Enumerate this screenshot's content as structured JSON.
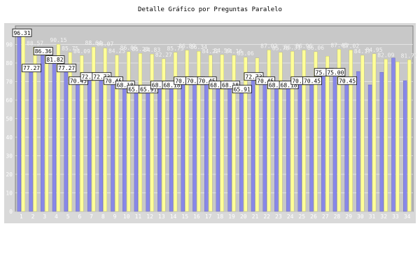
{
  "chart_data": {
    "type": "bar",
    "title": "Detalle Gráfico por Preguntas Paralelo",
    "xlabel": "",
    "ylabel": "",
    "ylim": [
      0,
      100
    ],
    "grid": true,
    "legend": "none",
    "categories": [
      "1",
      "2",
      "3",
      "4",
      "5",
      "6",
      "7",
      "8",
      "9",
      "10",
      "11",
      "12",
      "13",
      "14",
      "15",
      "16",
      "17",
      "18",
      "19",
      "20",
      "21",
      "22",
      "23",
      "24",
      "25",
      "26",
      "27",
      "28",
      "29",
      "30",
      "31",
      "32",
      "33",
      "34"
    ],
    "y_ticks": [
      "0",
      "10",
      "20",
      "30",
      "40",
      "50",
      "60",
      "70",
      "80",
      "90"
    ],
    "series": [
      {
        "color": "#8888e8",
        "values": [
          96.31,
          77.27,
          86.36,
          81.82,
          77.27,
          70.45,
          72.73,
          72.73,
          70.45,
          68.18,
          65.91,
          65.91,
          68.18,
          68.18,
          70.45,
          70.45,
          70.45,
          68.18,
          68.18,
          65.91,
          72.73,
          70.45,
          68.18,
          68.18,
          70.45,
          70.45,
          75.0,
          75.0,
          70.45,
          75.45,
          68.18,
          75.0,
          82.73,
          70.45
        ],
        "labels": [
          "96.31",
          "77.27",
          "86.36",
          "81.82",
          "77.27",
          "70.45",
          "72.73",
          "72.73",
          "70.45",
          "68.18",
          "65.91",
          "65.91",
          "68.18",
          "68.18",
          "70.45",
          "70.45",
          "70.45",
          "68.18",
          "68.18",
          "65.91",
          "72.73",
          "70.45",
          "68.18",
          "68.18",
          "70.45",
          "70.45",
          "75.00",
          "75.00",
          "70.45",
          "",
          "",
          "",
          "",
          ""
        ]
      },
      {
        "color": "#ffff99",
        "values": [
          96.31,
          88.57,
          86.36,
          90.15,
          85.75,
          84.09,
          88.64,
          88.07,
          84.25,
          86.06,
          85.23,
          84.83,
          82.27,
          85.75,
          86.89,
          86.34,
          84.22,
          84.5,
          84.16,
          83.06,
          82.73,
          87.02,
          85.76,
          86.31,
          86.96,
          86.06,
          83.71,
          87.45,
          87.02,
          84.17,
          84.95,
          82.09,
          80.66,
          81.77
        ],
        "labels": [
          "",
          "88.57",
          "",
          "90.15",
          "85.75",
          "84.09",
          "88.64",
          "88.07",
          "84.25",
          "86.06",
          "85.23",
          "84.83",
          "82.27",
          "85.75",
          "86.89",
          "86.34",
          "84.22",
          "84.50",
          "84.16",
          "83.06",
          "",
          "87.02",
          "85.76",
          "86.31",
          "86.96",
          "86.06",
          "",
          "87.45",
          "87.02",
          "84.17",
          "84.95",
          "82.09",
          "",
          "81.77"
        ]
      }
    ]
  }
}
